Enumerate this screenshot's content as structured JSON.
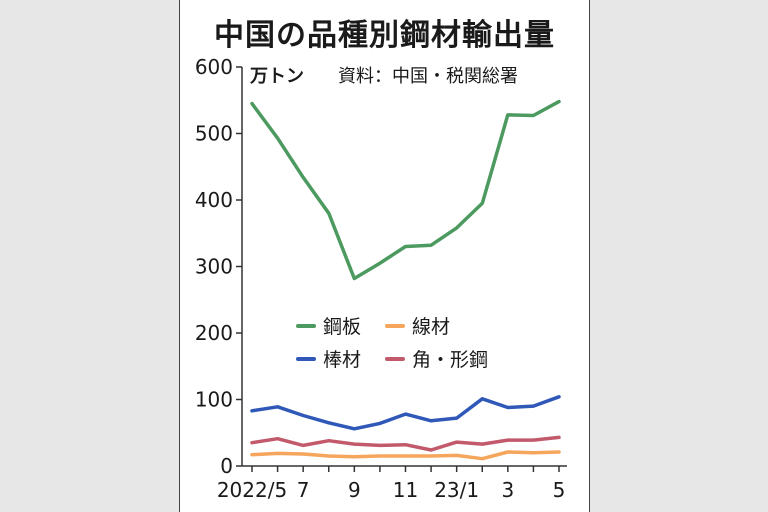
{
  "title": "中国の品種別鋼材輸出量",
  "unit_label": "万トン",
  "source_label": "資料：中国・税関総署",
  "chart_data": {
    "type": "line",
    "title": "中国の品種別鋼材輸出量",
    "ylabel": "万トン",
    "ylim": [
      0,
      600
    ],
    "yticks": [
      0,
      100,
      200,
      300,
      400,
      500,
      600
    ],
    "x": [
      "2022/5",
      "2022/6",
      "2022/7",
      "2022/8",
      "2022/9",
      "2022/10",
      "2022/11",
      "2022/12",
      "2023/1",
      "2023/2",
      "2023/3",
      "2023/4",
      "2023/5"
    ],
    "xtick_labels": [
      {
        "index": 0,
        "label": "2022/5"
      },
      {
        "index": 2,
        "label": "7"
      },
      {
        "index": 4,
        "label": "9"
      },
      {
        "index": 6,
        "label": "11"
      },
      {
        "index": 8,
        "label": "23/1"
      },
      {
        "index": 10,
        "label": "3"
      },
      {
        "index": 12,
        "label": "5"
      }
    ],
    "grid": false,
    "legend_position": "center",
    "series": [
      {
        "name": "鋼板",
        "color": "#4c9a5f",
        "values": [
          545,
          493,
          434,
          380,
          282,
          305,
          330,
          332,
          358,
          395,
          528,
          527,
          548
        ]
      },
      {
        "name": "線材",
        "color": "#f5a55c",
        "values": [
          17,
          19,
          18,
          15,
          14,
          15,
          15,
          15,
          16,
          11,
          21,
          20,
          21
        ]
      },
      {
        "name": "棒材",
        "color": "#2f58b8",
        "values": [
          83,
          89,
          76,
          65,
          56,
          64,
          78,
          68,
          72,
          101,
          88,
          90,
          104
        ]
      },
      {
        "name": "角・形鋼",
        "color": "#c25a6b",
        "values": [
          35,
          41,
          31,
          38,
          33,
          31,
          32,
          24,
          36,
          33,
          39,
          39,
          43
        ]
      }
    ]
  }
}
